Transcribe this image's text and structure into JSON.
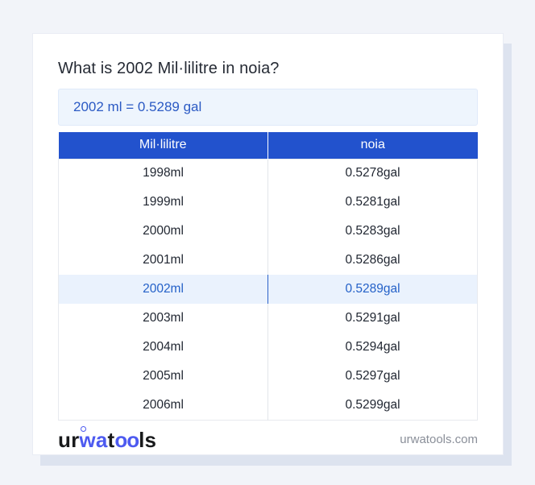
{
  "card": {
    "title": "What is 2002 Mil·lilitre in noia?",
    "result": "2002 ml = 0.5289 gal"
  },
  "table": {
    "headers": [
      "Mil·lilitre",
      "noia"
    ],
    "rows": [
      {
        "ml": "1998ml",
        "gal": "0.5278gal",
        "highlight": false
      },
      {
        "ml": "1999ml",
        "gal": "0.5281gal",
        "highlight": false
      },
      {
        "ml": "2000ml",
        "gal": "0.5283gal",
        "highlight": false
      },
      {
        "ml": "2001ml",
        "gal": "0.5286gal",
        "highlight": false
      },
      {
        "ml": "2002ml",
        "gal": "0.5289gal",
        "highlight": true
      },
      {
        "ml": "2003ml",
        "gal": "0.5291gal",
        "highlight": false
      },
      {
        "ml": "2004ml",
        "gal": "0.5294gal",
        "highlight": false
      },
      {
        "ml": "2005ml",
        "gal": "0.5297gal",
        "highlight": false
      },
      {
        "ml": "2006ml",
        "gal": "0.5299gal",
        "highlight": false
      }
    ]
  },
  "footer": {
    "logo_parts": {
      "p1": "ur",
      "p2": "wa",
      "p3": "t",
      "p4": "oo",
      "p5": "ls"
    },
    "website": "urwatools.com"
  },
  "colors": {
    "header_bg": "#2252cd",
    "result_text": "#2b5ac4",
    "result_bg": "#eef5fd",
    "highlight_bg": "#eaf2fd",
    "highlight_text": "#2461c8",
    "logo_blue": "#4d5af0",
    "page_bg": "#f2f4f9",
    "shadow": "#dde3ef"
  }
}
